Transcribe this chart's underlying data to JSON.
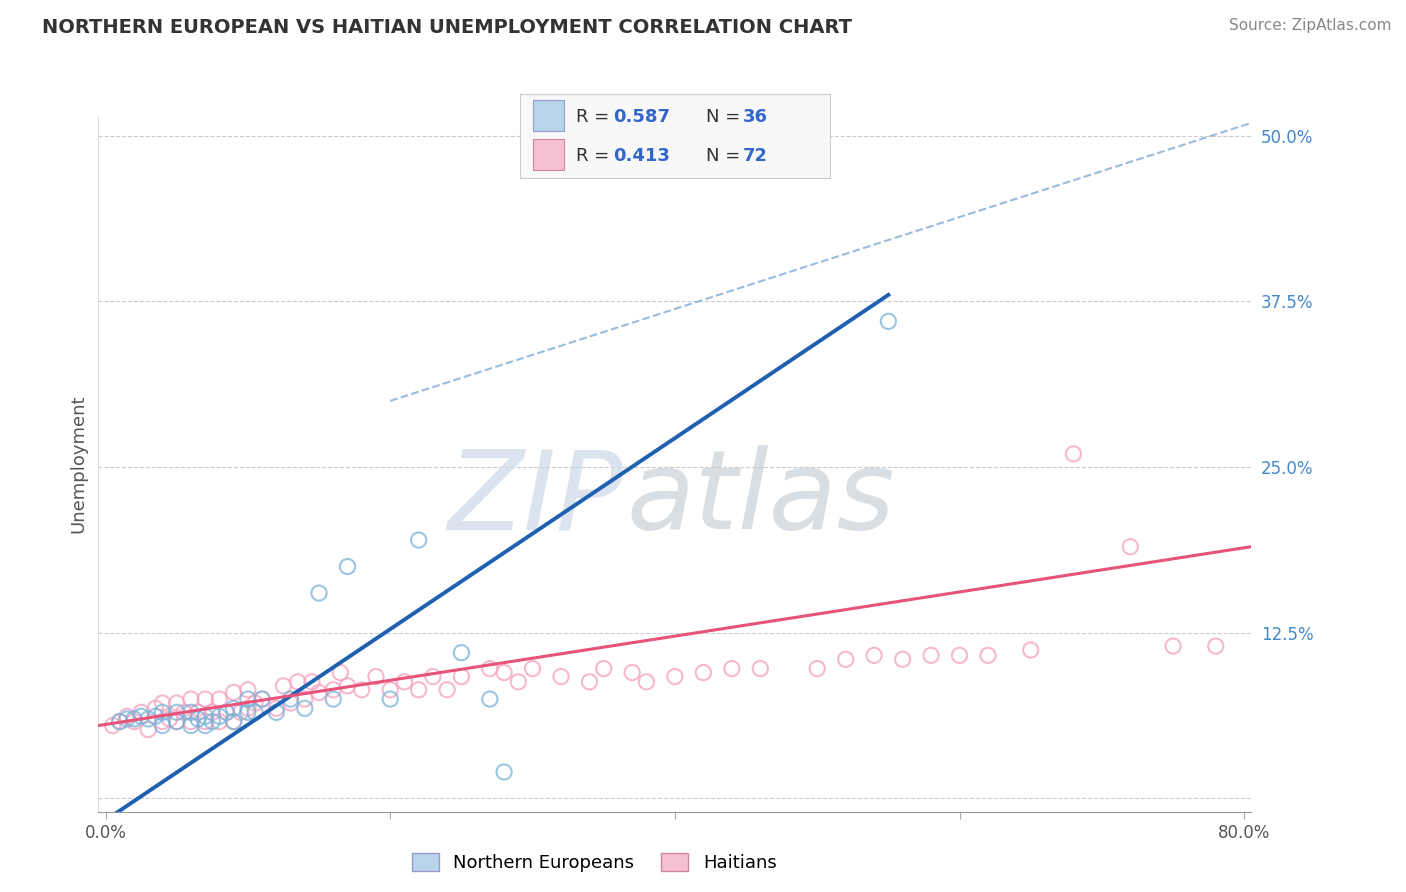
{
  "title": "NORTHERN EUROPEAN VS HAITIAN UNEMPLOYMENT CORRELATION CHART",
  "source": "Source: ZipAtlas.com",
  "ylabel": "Unemployment",
  "xlim": [
    -0.005,
    0.805
  ],
  "ylim": [
    -0.01,
    0.515
  ],
  "xticks": [
    0.0,
    0.2,
    0.4,
    0.6,
    0.8
  ],
  "xticklabels": [
    "0.0%",
    "",
    "",
    "",
    "80.0%"
  ],
  "yticks": [
    0.0,
    0.125,
    0.25,
    0.375,
    0.5
  ],
  "yticklabels": [
    "",
    "12.5%",
    "25.0%",
    "37.5%",
    "50.0%"
  ],
  "blue_scatter_color": "#7ab3d8",
  "pink_scatter_color": "#f4a0bf",
  "blue_line_color": "#2060b0",
  "pink_line_color": "#e8537a",
  "dash_line_color": "#99bbdd",
  "legend_box_blue": "#b8d4ea",
  "legend_box_pink": "#f6c0d4",
  "R_blue": "0.587",
  "N_blue": "36",
  "R_pink": "0.413",
  "N_pink": "72",
  "blue_scatter_x": [
    0.01,
    0.015,
    0.02,
    0.025,
    0.03,
    0.035,
    0.04,
    0.04,
    0.05,
    0.05,
    0.06,
    0.06,
    0.065,
    0.07,
    0.07,
    0.075,
    0.08,
    0.085,
    0.09,
    0.09,
    0.1,
    0.1,
    0.105,
    0.11,
    0.12,
    0.13,
    0.14,
    0.15,
    0.16,
    0.17,
    0.2,
    0.22,
    0.25,
    0.27,
    0.55,
    0.28
  ],
  "blue_scatter_y": [
    0.058,
    0.06,
    0.06,
    0.062,
    0.06,
    0.062,
    0.055,
    0.065,
    0.058,
    0.065,
    0.055,
    0.065,
    0.06,
    0.055,
    0.062,
    0.058,
    0.062,
    0.065,
    0.058,
    0.068,
    0.065,
    0.075,
    0.065,
    0.075,
    0.065,
    0.075,
    0.068,
    0.155,
    0.075,
    0.175,
    0.075,
    0.195,
    0.11,
    0.075,
    0.36,
    0.02
  ],
  "pink_scatter_x": [
    0.005,
    0.01,
    0.015,
    0.02,
    0.025,
    0.03,
    0.035,
    0.04,
    0.04,
    0.045,
    0.05,
    0.05,
    0.055,
    0.06,
    0.06,
    0.065,
    0.07,
    0.07,
    0.075,
    0.08,
    0.08,
    0.085,
    0.09,
    0.09,
    0.095,
    0.1,
    0.1,
    0.105,
    0.11,
    0.12,
    0.125,
    0.13,
    0.135,
    0.14,
    0.145,
    0.15,
    0.16,
    0.165,
    0.17,
    0.18,
    0.19,
    0.2,
    0.21,
    0.22,
    0.23,
    0.24,
    0.25,
    0.27,
    0.28,
    0.29,
    0.3,
    0.32,
    0.34,
    0.35,
    0.37,
    0.38,
    0.4,
    0.42,
    0.44,
    0.46,
    0.5,
    0.52,
    0.54,
    0.56,
    0.58,
    0.6,
    0.62,
    0.65,
    0.68,
    0.72,
    0.75,
    0.78
  ],
  "pink_scatter_y": [
    0.055,
    0.058,
    0.062,
    0.058,
    0.065,
    0.052,
    0.068,
    0.058,
    0.072,
    0.06,
    0.058,
    0.072,
    0.065,
    0.058,
    0.075,
    0.065,
    0.058,
    0.075,
    0.065,
    0.058,
    0.075,
    0.065,
    0.058,
    0.08,
    0.065,
    0.068,
    0.082,
    0.072,
    0.075,
    0.068,
    0.085,
    0.072,
    0.088,
    0.075,
    0.088,
    0.08,
    0.082,
    0.095,
    0.085,
    0.082,
    0.092,
    0.082,
    0.088,
    0.082,
    0.092,
    0.082,
    0.092,
    0.098,
    0.095,
    0.088,
    0.098,
    0.092,
    0.088,
    0.098,
    0.095,
    0.088,
    0.092,
    0.095,
    0.098,
    0.098,
    0.098,
    0.105,
    0.108,
    0.105,
    0.108,
    0.108,
    0.108,
    0.112,
    0.26,
    0.19,
    0.115,
    0.115
  ],
  "blue_line_x0": -0.005,
  "blue_line_x1": 0.55,
  "blue_line_y0": -0.02,
  "blue_line_y1": 0.38,
  "pink_line_x0": -0.005,
  "pink_line_x1": 0.805,
  "pink_line_y0": 0.055,
  "pink_line_y1": 0.19,
  "dash_line_x0": 0.2,
  "dash_line_x1": 0.82,
  "dash_line_y0": 0.3,
  "dash_line_y1": 0.515
}
